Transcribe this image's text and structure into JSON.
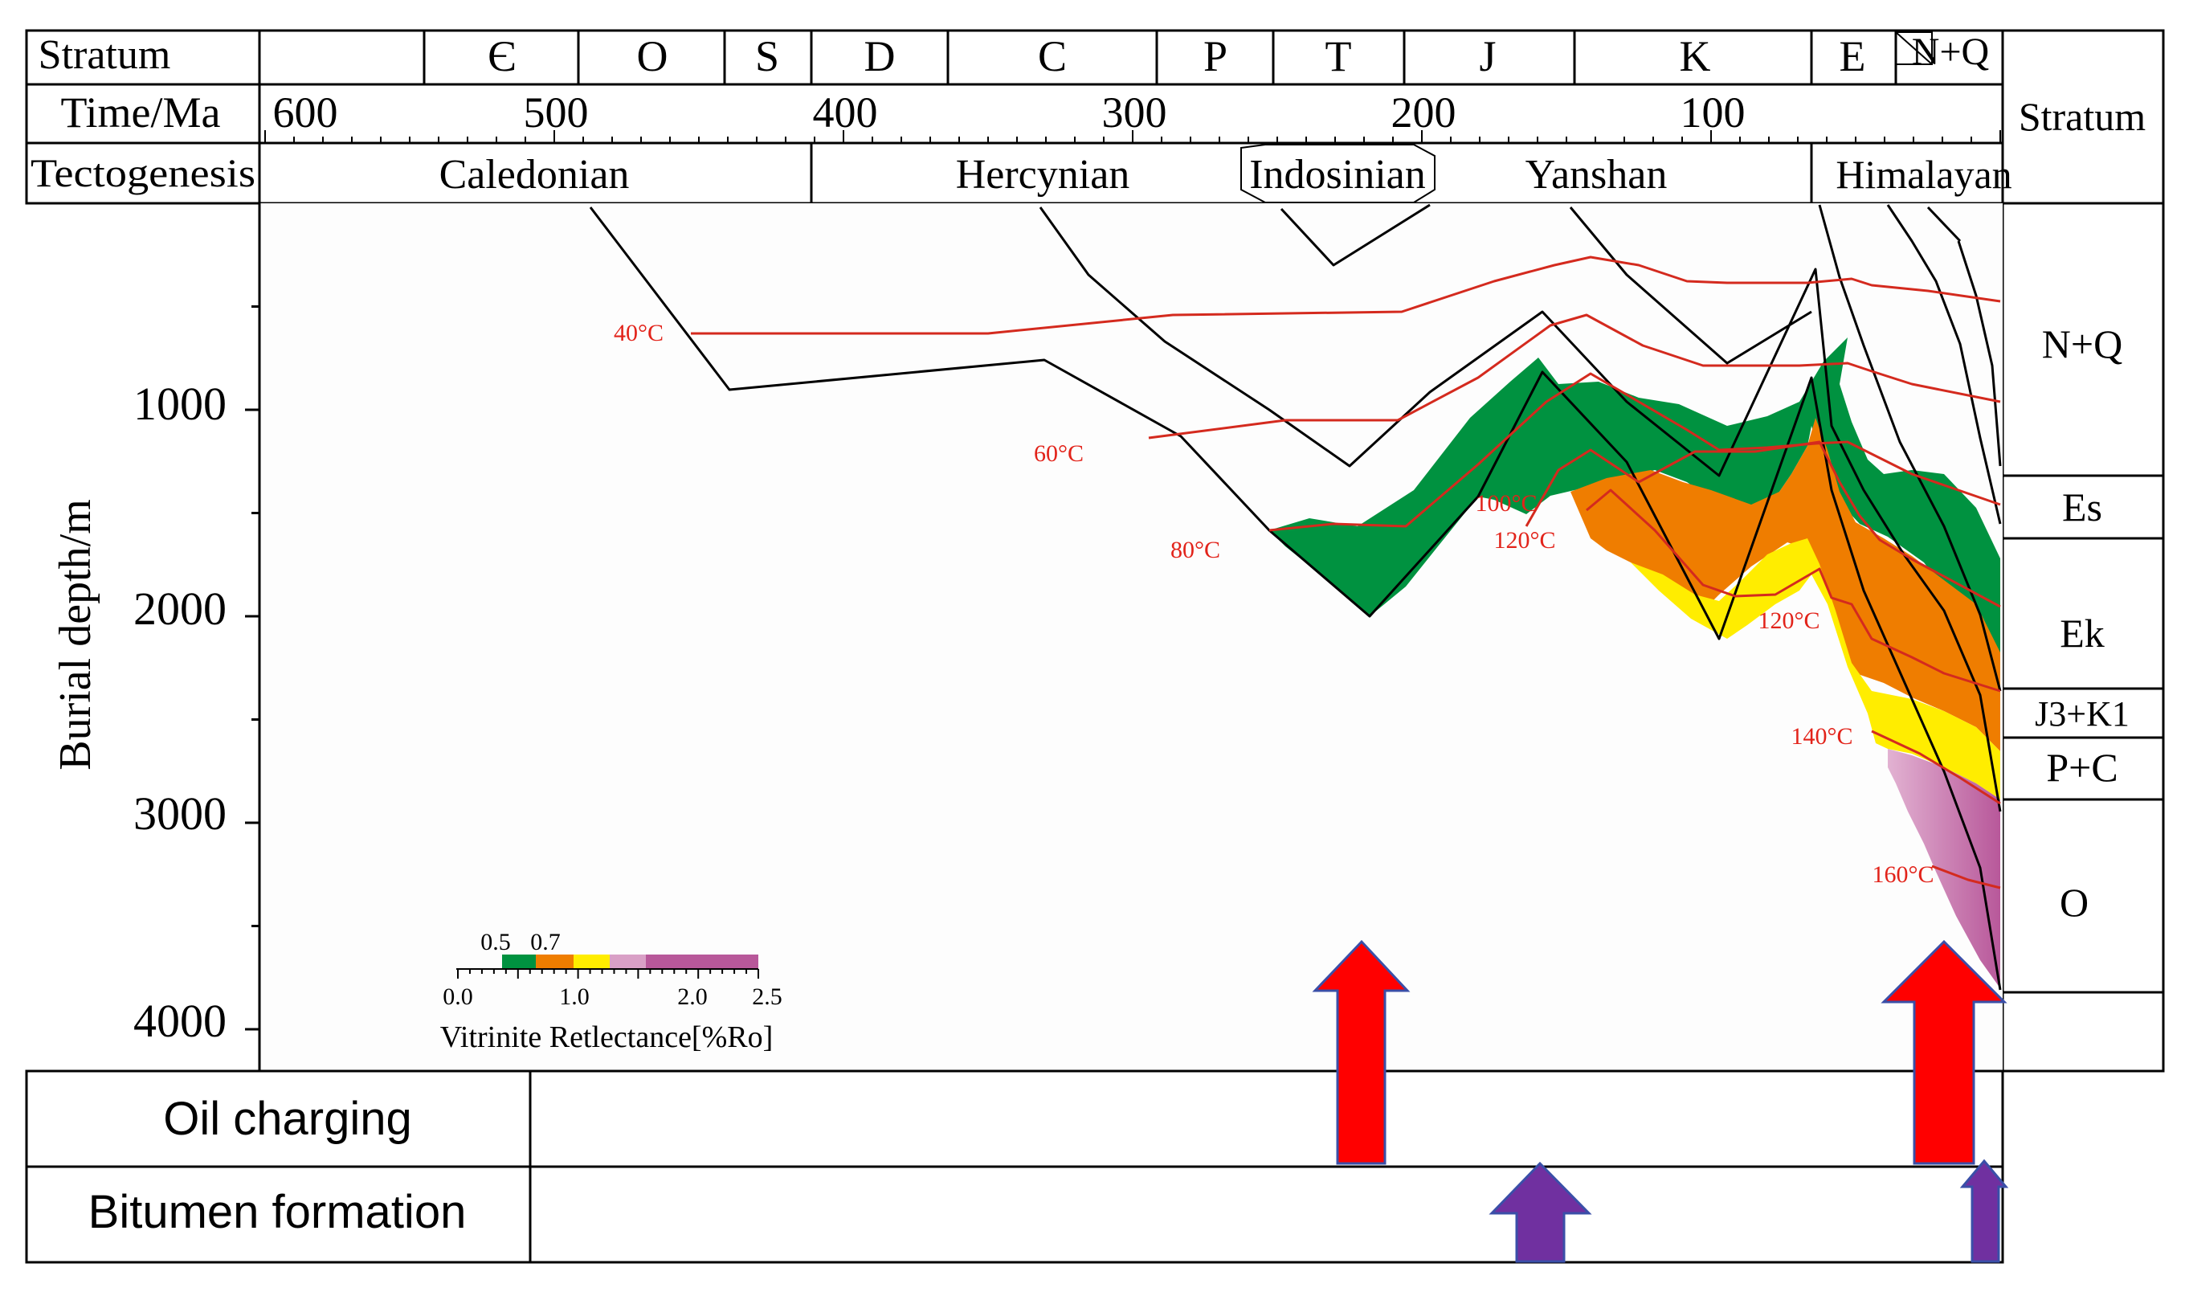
{
  "header": {
    "stratum_label": "Stratum",
    "time_label": "Time/Ma",
    "tectogenesis_label": "Tectogenesis",
    "periods": [
      "Є",
      "O",
      "S",
      "D",
      "C",
      "P",
      "T",
      "J",
      "K",
      "E",
      "N+Q"
    ],
    "time_ticks": [
      "600",
      "500",
      "400",
      "300",
      "200",
      "100"
    ],
    "tectonic_events": [
      "Caledonian",
      "Hercynian",
      "Indosinian",
      "Yanshan",
      "Himalayan"
    ]
  },
  "right_column": {
    "title": "Stratum",
    "units": [
      "N+Q",
      "Es",
      "Ek",
      "J3+K1",
      "P+C",
      "O"
    ]
  },
  "y_axis": {
    "label": "Burial depth/m",
    "ticks": [
      "1000",
      "2000",
      "3000",
      "4000"
    ]
  },
  "isotherm_labels": [
    "40°C",
    "60°C",
    "80°C",
    "100°C",
    "120°C",
    "120°C",
    "140°C",
    "160°C"
  ],
  "legend": {
    "scale_top": [
      "0.5",
      "0.7"
    ],
    "scale_bottom": [
      "0.0",
      "1.0",
      "2.0",
      "2.5"
    ],
    "title": "Vitrinite Retlectance[%Ro]",
    "colors": {
      "green": "#009240",
      "orange": "#ef7d00",
      "yellow": "#ffed00",
      "pink_light": "#d9a0c6",
      "magenta": "#b8589a"
    }
  },
  "events": {
    "oil_label": "Oil charging",
    "bitumen_label": "Bitumen formation",
    "oil_arrow_color": "#ff0000",
    "bitumen_arrow_color": "#7030a0"
  }
}
